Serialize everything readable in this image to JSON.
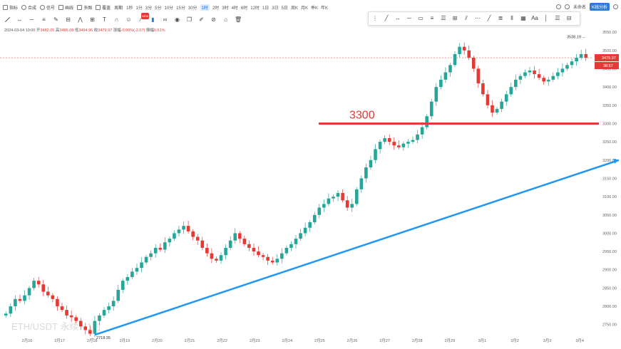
{
  "toolbar": {
    "items": [
      "指标",
      "合成",
      "信号",
      "画线",
      "多图",
      "覆盖",
      "周期"
    ],
    "intervals": [
      "1秒",
      "1分",
      "3分",
      "5分",
      "10分",
      "15分",
      "30分",
      "1时",
      "2时",
      "3时",
      "4时",
      "6时",
      "12时",
      "1日",
      "3日",
      "5日",
      "周K",
      "月K",
      "季K",
      "年K"
    ],
    "active_interval": "1时",
    "right_label": "未命名",
    "kline_button": "K线分析",
    "draw_badge": "NEW"
  },
  "ohlc": {
    "datetime": "2024-03-04 10:00",
    "open_label": "开",
    "open": "3482.05",
    "high_label": "高",
    "high": "3486.08",
    "low_label": "低",
    "low": "3464.96",
    "close_label": "收",
    "close": "3479.97",
    "change_label": "涨幅",
    "change": "-0.06%(-2.07)",
    "amp_label": "振幅",
    "amp": "0.61%"
  },
  "watermark": "ETH/USDT 永续 · 1时",
  "annotation": "3300",
  "colors": {
    "up": "#26a69a",
    "down": "#e53935",
    "line": "#e53935",
    "trend": "#2196f3"
  },
  "chart_data": {
    "type": "candlestick",
    "x_labels": [
      "2月16",
      "2月17",
      "2月18",
      "2月19",
      "2月20",
      "2月21",
      "2月22",
      "2月23",
      "2月24",
      "2月25",
      "2月26",
      "2月27",
      "2月28",
      "2月29",
      "3月1",
      "3月2",
      "3月3",
      "3月4"
    ],
    "y_ticks": [
      2750,
      2800,
      2850,
      2900,
      2950,
      3000,
      3050,
      3100,
      3150,
      3200,
      3250,
      3300,
      3350,
      3400,
      3450,
      3500,
      3550
    ],
    "ylim": [
      2730,
      3560
    ],
    "high_marker": "3538.19",
    "low_marker": "2718.35",
    "current_price": "3479.97",
    "countdown": "38:57",
    "horizontal_line": 3300,
    "trendline": {
      "from": [
        "2月18",
        2720
      ],
      "to": [
        "3月4+",
        3200
      ]
    },
    "closes": [
      2780,
      2800,
      2820,
      2815,
      2830,
      2850,
      2870,
      2860,
      2840,
      2830,
      2820,
      2800,
      2790,
      2775,
      2770,
      2760,
      2745,
      2735,
      2725,
      2760,
      2775,
      2790,
      2800,
      2815,
      2845,
      2870,
      2880,
      2895,
      2905,
      2920,
      2935,
      2945,
      2960,
      2955,
      2975,
      2985,
      3000,
      3010,
      3020,
      3005,
      2990,
      2980,
      2960,
      2945,
      2930,
      2925,
      2940,
      2960,
      2980,
      3000,
      2985,
      2970,
      2960,
      2950,
      2940,
      2935,
      2925,
      2920,
      2930,
      2945,
      2960,
      2970,
      2985,
      3000,
      3015,
      3030,
      3050,
      3070,
      3080,
      3095,
      3100,
      3110,
      3090,
      3070,
      3080,
      3120,
      3150,
      3180,
      3200,
      3230,
      3250,
      3260,
      3250,
      3240,
      3235,
      3245,
      3250,
      3255,
      3270,
      3290,
      3320,
      3360,
      3400,
      3420,
      3440,
      3460,
      3490,
      3510,
      3500,
      3480,
      3450,
      3410,
      3380,
      3350,
      3330,
      3340,
      3360,
      3380,
      3400,
      3420,
      3430,
      3440,
      3445,
      3435,
      3425,
      3415,
      3420,
      3430,
      3440,
      3450,
      3460,
      3470,
      3480,
      3490,
      3480
    ]
  }
}
